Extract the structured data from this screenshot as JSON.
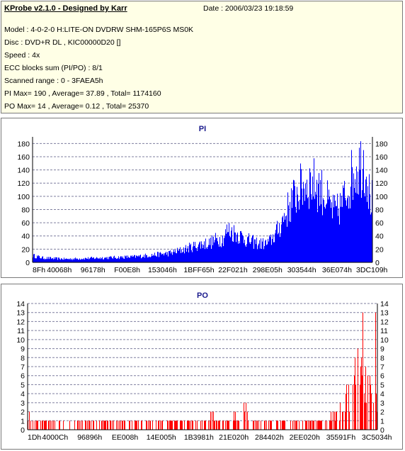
{
  "info": {
    "app_title": "KProbe v2.1.0 - Designed by Karr",
    "date": "Date : 2006/03/23 19:18:59",
    "lines": [
      "Model : 4-0-2-0 H:LITE-ON DVDRW SHM-165P6S MS0K",
      "Disc : DVD+R DL , KIC00000D20 []",
      "Speed : 4x",
      "ECC blocks sum (PI/PO) : 8/1",
      "Scanned range : 0 - 3FAEA5h",
      "PI Max= 190 , Average= 37.89 , Total= 1174160",
      "PO Max= 14 , Average= 0.12 , Total= 25370"
    ]
  },
  "colors": {
    "fill": "#0000ff",
    "po_fill": "#ff0000",
    "grid": "#7f7f9f",
    "title": "#1a1a8c"
  },
  "chart_data": [
    {
      "type": "area",
      "title": "PI",
      "ylim": [
        0,
        190
      ],
      "y_ticks": [
        0,
        20,
        40,
        60,
        80,
        100,
        120,
        140,
        160,
        180
      ],
      "x_tick_labels": [
        "8Fh",
        "40068h",
        "96178h",
        "F00E8h",
        "153046h",
        "1BFF65h",
        "22F021h",
        "298E05h",
        "303544h",
        "36E074h",
        "3DC109h"
      ],
      "x_tick_pos": [
        0,
        0.082,
        0.185,
        0.29,
        0.398,
        0.51,
        0.614,
        0.72,
        0.825,
        0.933,
        1.04
      ],
      "grid": true,
      "envelope": [
        [
          0.0,
          12
        ],
        [
          0.03,
          8
        ],
        [
          0.06,
          7
        ],
        [
          0.1,
          6
        ],
        [
          0.15,
          7
        ],
        [
          0.2,
          8
        ],
        [
          0.25,
          9
        ],
        [
          0.3,
          10
        ],
        [
          0.35,
          13
        ],
        [
          0.4,
          16
        ],
        [
          0.44,
          22
        ],
        [
          0.47,
          28
        ],
        [
          0.5,
          33
        ],
        [
          0.52,
          34
        ],
        [
          0.54,
          40
        ],
        [
          0.56,
          42
        ],
        [
          0.575,
          58
        ],
        [
          0.59,
          54
        ],
        [
          0.61,
          48
        ],
        [
          0.63,
          40
        ],
        [
          0.65,
          36
        ],
        [
          0.67,
          33
        ],
        [
          0.69,
          33
        ],
        [
          0.7,
          38
        ],
        [
          0.72,
          55
        ],
        [
          0.74,
          80
        ],
        [
          0.76,
          105
        ],
        [
          0.78,
          125
        ],
        [
          0.8,
          138
        ],
        [
          0.82,
          143
        ],
        [
          0.84,
          136
        ],
        [
          0.86,
          120
        ],
        [
          0.875,
          100
        ],
        [
          0.89,
          90
        ],
        [
          0.9,
          92
        ],
        [
          0.915,
          110
        ],
        [
          0.93,
          135
        ],
        [
          0.945,
          160
        ],
        [
          0.96,
          172
        ],
        [
          0.97,
          178
        ],
        [
          0.975,
          182
        ],
        [
          0.985,
          160
        ],
        [
          0.992,
          120
        ],
        [
          1.0,
          110
        ]
      ]
    },
    {
      "type": "bar",
      "title": "PO",
      "ylim": [
        0,
        14
      ],
      "y_ticks": [
        0,
        1,
        2,
        3,
        4,
        5,
        6,
        7,
        8,
        9,
        10,
        11,
        12,
        13,
        14
      ],
      "x_tick_labels": [
        "1Dh",
        "4000Ch",
        "96896h",
        "EE008h",
        "14E005h",
        "1B3981h",
        "21E020h",
        "284402h",
        "2EE020h",
        "35591Fh",
        "3C5034h"
      ],
      "x_tick_pos": [
        0,
        0.082,
        0.185,
        0.29,
        0.398,
        0.51,
        0.614,
        0.72,
        0.825,
        0.933,
        1.04
      ],
      "grid": true,
      "envelope": [
        [
          0.0,
          2
        ],
        [
          0.05,
          1
        ],
        [
          0.1,
          1
        ],
        [
          0.2,
          1
        ],
        [
          0.3,
          1
        ],
        [
          0.4,
          1
        ],
        [
          0.45,
          1
        ],
        [
          0.5,
          1
        ],
        [
          0.52,
          2
        ],
        [
          0.55,
          1
        ],
        [
          0.58,
          1
        ],
        [
          0.6,
          2
        ],
        [
          0.62,
          3
        ],
        [
          0.65,
          1
        ],
        [
          0.7,
          1
        ],
        [
          0.75,
          1
        ],
        [
          0.8,
          1
        ],
        [
          0.85,
          1
        ],
        [
          0.88,
          2
        ],
        [
          0.9,
          3
        ],
        [
          0.91,
          4
        ],
        [
          0.92,
          6
        ],
        [
          0.935,
          8
        ],
        [
          0.95,
          10
        ],
        [
          0.96,
          11
        ],
        [
          0.97,
          9
        ],
        [
          0.98,
          6
        ],
        [
          0.99,
          3
        ],
        [
          0.995,
          14
        ],
        [
          1.0,
          2
        ]
      ]
    }
  ]
}
